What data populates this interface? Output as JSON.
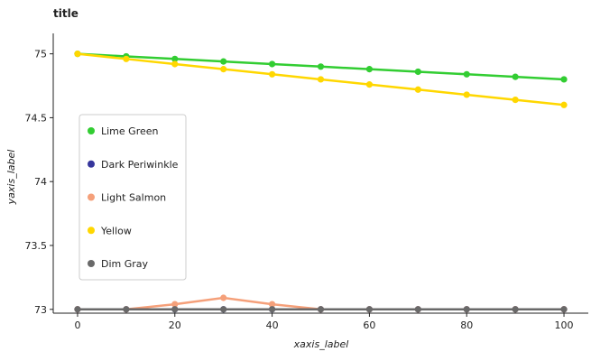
{
  "chart_data": {
    "type": "line",
    "title": "title",
    "xlabel": "xaxis_label",
    "ylabel": "yaxis_label",
    "x": [
      0,
      10,
      20,
      30,
      40,
      50,
      60,
      70,
      80,
      90,
      100
    ],
    "xlim": [
      -5,
      105
    ],
    "ylim": [
      72.97,
      75.16
    ],
    "xticks": [
      0,
      20,
      40,
      60,
      80,
      100
    ],
    "yticks": [
      73,
      73.5,
      74,
      74.5,
      75
    ],
    "xtick_labels": [
      "0",
      "20",
      "40",
      "60",
      "80",
      "100"
    ],
    "ytick_labels": [
      "73",
      "73.5",
      "74",
      "74.5",
      "75"
    ],
    "grid": false,
    "legend_position": "left",
    "series": [
      {
        "name": "Lime Green",
        "color": "#32cd32",
        "values": [
          75.0,
          74.98,
          74.96,
          74.94,
          74.92,
          74.9,
          74.88,
          74.86,
          74.84,
          74.82,
          74.8
        ]
      },
      {
        "name": "Dark Periwinkle",
        "color": "#36369c",
        "values": [
          73.0,
          73.0,
          73.0,
          73.0,
          73.0,
          73.0,
          73.0,
          73.0,
          73.0,
          73.0,
          73.0
        ]
      },
      {
        "name": "Light Salmon",
        "color": "#f5a07a",
        "values": [
          73.0,
          73.0,
          73.04,
          73.09,
          73.04,
          73.0,
          73.0,
          73.0,
          73.0,
          73.0,
          73.0
        ]
      },
      {
        "name": "Yellow",
        "color": "#ffd700",
        "values": [
          75.0,
          74.96,
          74.92,
          74.88,
          74.84,
          74.8,
          74.76,
          74.72,
          74.68,
          74.64,
          74.6
        ]
      },
      {
        "name": "Dim Gray",
        "color": "#696969",
        "values": [
          73.0,
          73.0,
          73.0,
          73.0,
          73.0,
          73.0,
          73.0,
          73.0,
          73.0,
          73.0,
          73.0
        ]
      }
    ]
  }
}
